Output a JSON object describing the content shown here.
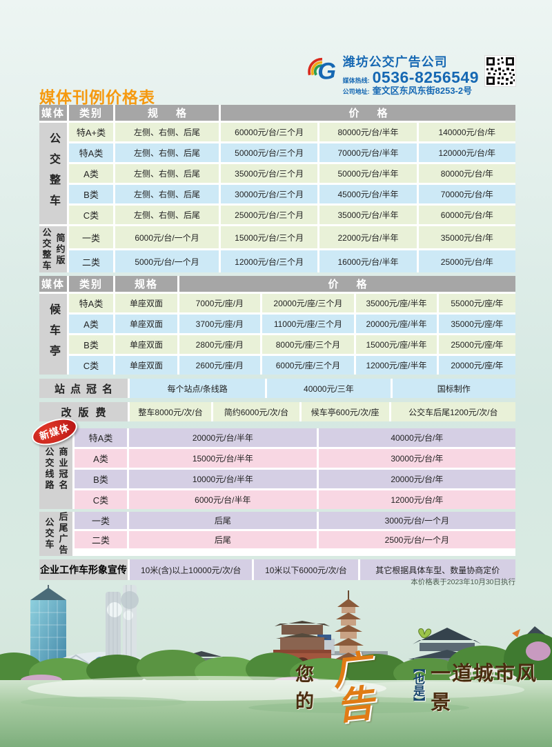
{
  "page": {
    "title": "媒体刊例价格表",
    "footnote": "本价格表于2023年10月30日执行"
  },
  "brand": {
    "company": "潍坊公交广告公司",
    "hotline_label": "媒体热线:",
    "hotline": "0536-8256549",
    "address_label": "公司地址:",
    "address": "奎文区东风东街8253-2号"
  },
  "colors": {
    "title_orange": "#f5990f",
    "brand_blue": "#1668b3",
    "header_gray": "#a6a6a6",
    "label_gray": "#d2d2d2",
    "row_green": "#e9f1d8",
    "row_blue": "#cde9f6",
    "row_lavender": "#d5cfe4",
    "row_pink": "#f8d7e3",
    "badge_red": "#b51414"
  },
  "table_headers": {
    "media": "媒体",
    "category": "类别",
    "spec": "规格",
    "price": "价格"
  },
  "bus_full": {
    "media_label": "公交整车",
    "rows": [
      [
        "特A+类",
        "左侧、右侧、后尾",
        "60000元/台/三个月",
        "80000元/台/半年",
        "140000元/台/年"
      ],
      [
        "特A类",
        "左侧、右侧、后尾",
        "50000元/台/三个月",
        "70000元/台/半年",
        "120000元/台/年"
      ],
      [
        "A类",
        "左侧、右侧、后尾",
        "35000元/台/三个月",
        "50000元/台/半年",
        "80000元/台/年"
      ],
      [
        "B类",
        "左侧、右侧、后尾",
        "30000元/台/三个月",
        "45000元/台/半年",
        "70000元/台/年"
      ],
      [
        "C类",
        "左侧、右侧、后尾",
        "25000元/台/三个月",
        "35000元/台/半年",
        "60000元/台/年"
      ]
    ]
  },
  "bus_simple": {
    "media_label_main": "公交整车",
    "media_label_sub": "简约版",
    "rows": [
      [
        "一类",
        "6000元/台/一个月",
        "15000元/台/三个月",
        "22000元/台/半年",
        "35000元/台/年"
      ],
      [
        "二类",
        "5000元/台/一个月",
        "12000元/台/三个月",
        "16000元/台/半年",
        "25000元/台/年"
      ]
    ]
  },
  "shelter": {
    "media_label": "候车亭",
    "rows": [
      [
        "特A类",
        "单座双面",
        "7000元/座/月",
        "20000元/座/三个月",
        "35000元/座/半年",
        "55000元/座/年"
      ],
      [
        "A类",
        "单座双面",
        "3700元/座/月",
        "11000元/座/三个月",
        "20000元/座/半年",
        "35000元/座/年"
      ],
      [
        "B类",
        "单座双面",
        "2800元/座/月",
        "8000元/座/三个月",
        "15000元/座/半年",
        "25000元/座/年"
      ],
      [
        "C类",
        "单座双面",
        "2600元/座/月",
        "6000元/座/三个月",
        "12000元/座/半年",
        "20000元/座/年"
      ]
    ]
  },
  "station_naming": {
    "label": "站点冠名",
    "cells": [
      "每个站点/条线路",
      "40000元/三年",
      "国标制作"
    ]
  },
  "revision_fee": {
    "label": "改版费",
    "cells": [
      "整车8000元/次/台",
      "简约6000元/次/台",
      "候车亭600元/次/座",
      "公交车后尾1200元/次/台"
    ]
  },
  "line_naming": {
    "badge": "新媒体",
    "label_left": "公交线路",
    "label_right": "商业冠名",
    "rows": [
      [
        "特A类",
        "20000元/台/半年",
        "40000元/台/年"
      ],
      [
        "A类",
        "15000元/台/半年",
        "30000元/台/年"
      ],
      [
        "B类",
        "10000元/台/半年",
        "20000元/台/年"
      ],
      [
        "C类",
        "6000元/台/半年",
        "12000元/台/年"
      ]
    ]
  },
  "rear_ad": {
    "label_left": "公交车",
    "label_right": "后尾广告",
    "rows": [
      [
        "一类",
        "后尾",
        "3000元/台/一个月"
      ],
      [
        "二类",
        "后尾",
        "2500元/台/一个月"
      ]
    ]
  },
  "enterprise": {
    "label": "企业工作车形象宣传",
    "cells": [
      "10米(含)以上10000元/次/台",
      "10米以下6000元/次/台",
      "其它根据具体车型、数量协商定价"
    ]
  },
  "slogan": {
    "part_you": "您的",
    "part_ad": "广告",
    "part_also": "【也是】",
    "part_rest": "一道城市风景"
  }
}
